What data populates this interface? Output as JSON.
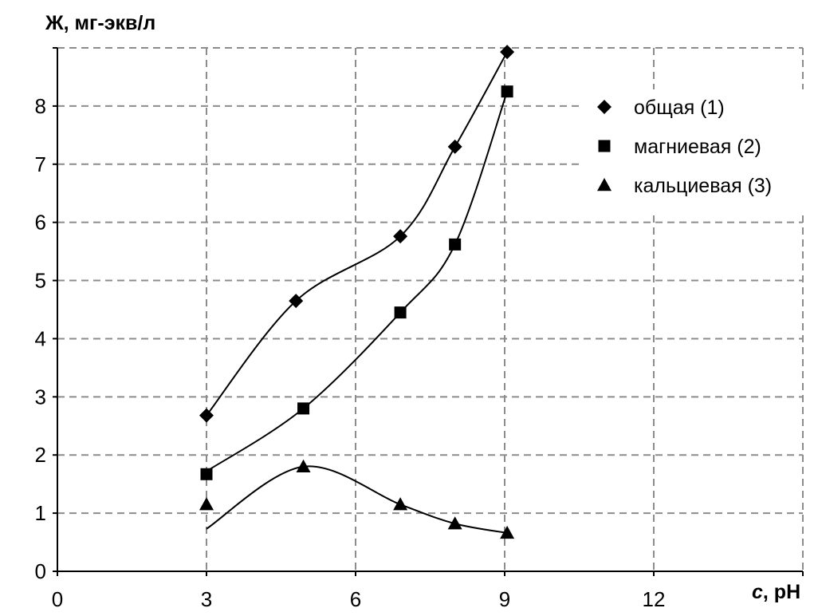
{
  "chart_data": {
    "type": "scatter",
    "ylabel": "Ж, мг-экв/л",
    "xlabel_italic": "c",
    "xlabel_rest": ", pH",
    "xlim": [
      0,
      15
    ],
    "ylim": [
      0,
      9
    ],
    "x_ticks": [
      0,
      3,
      6,
      9,
      12
    ],
    "y_ticks": [
      0,
      1,
      2,
      3,
      4,
      5,
      6,
      7,
      8
    ],
    "grid": true,
    "legend_position": "top-right",
    "series": [
      {
        "name": "общая (1)",
        "marker": "diamond",
        "points": [
          [
            3,
            2.68
          ],
          [
            4.8,
            4.65
          ],
          [
            6.9,
            5.76
          ],
          [
            8.0,
            7.3
          ],
          [
            9.05,
            8.93
          ]
        ],
        "curve": [
          [
            3,
            2.68
          ],
          [
            4.8,
            4.65
          ],
          [
            6.9,
            5.76
          ],
          [
            8.0,
            7.3
          ],
          [
            9.05,
            8.93
          ]
        ]
      },
      {
        "name": "магниевая (2)",
        "marker": "square",
        "points": [
          [
            3,
            1.67
          ],
          [
            4.95,
            2.8
          ],
          [
            6.9,
            4.45
          ],
          [
            8.0,
            5.62
          ],
          [
            9.05,
            8.25
          ]
        ],
        "curve": [
          [
            3,
            1.72
          ],
          [
            4.95,
            2.8
          ],
          [
            6.9,
            4.45
          ],
          [
            8.0,
            5.62
          ],
          [
            9.05,
            8.25
          ]
        ]
      },
      {
        "name": "кальциевая (3)",
        "marker": "triangle",
        "points": [
          [
            3,
            1.15
          ],
          [
            4.95,
            1.8
          ],
          [
            6.9,
            1.15
          ],
          [
            8.0,
            0.82
          ],
          [
            9.05,
            0.66
          ]
        ],
        "curve": [
          [
            3,
            0.73
          ],
          [
            4.95,
            1.8
          ],
          [
            6.9,
            1.15
          ],
          [
            8.0,
            0.82
          ],
          [
            9.05,
            0.66
          ]
        ]
      }
    ]
  }
}
